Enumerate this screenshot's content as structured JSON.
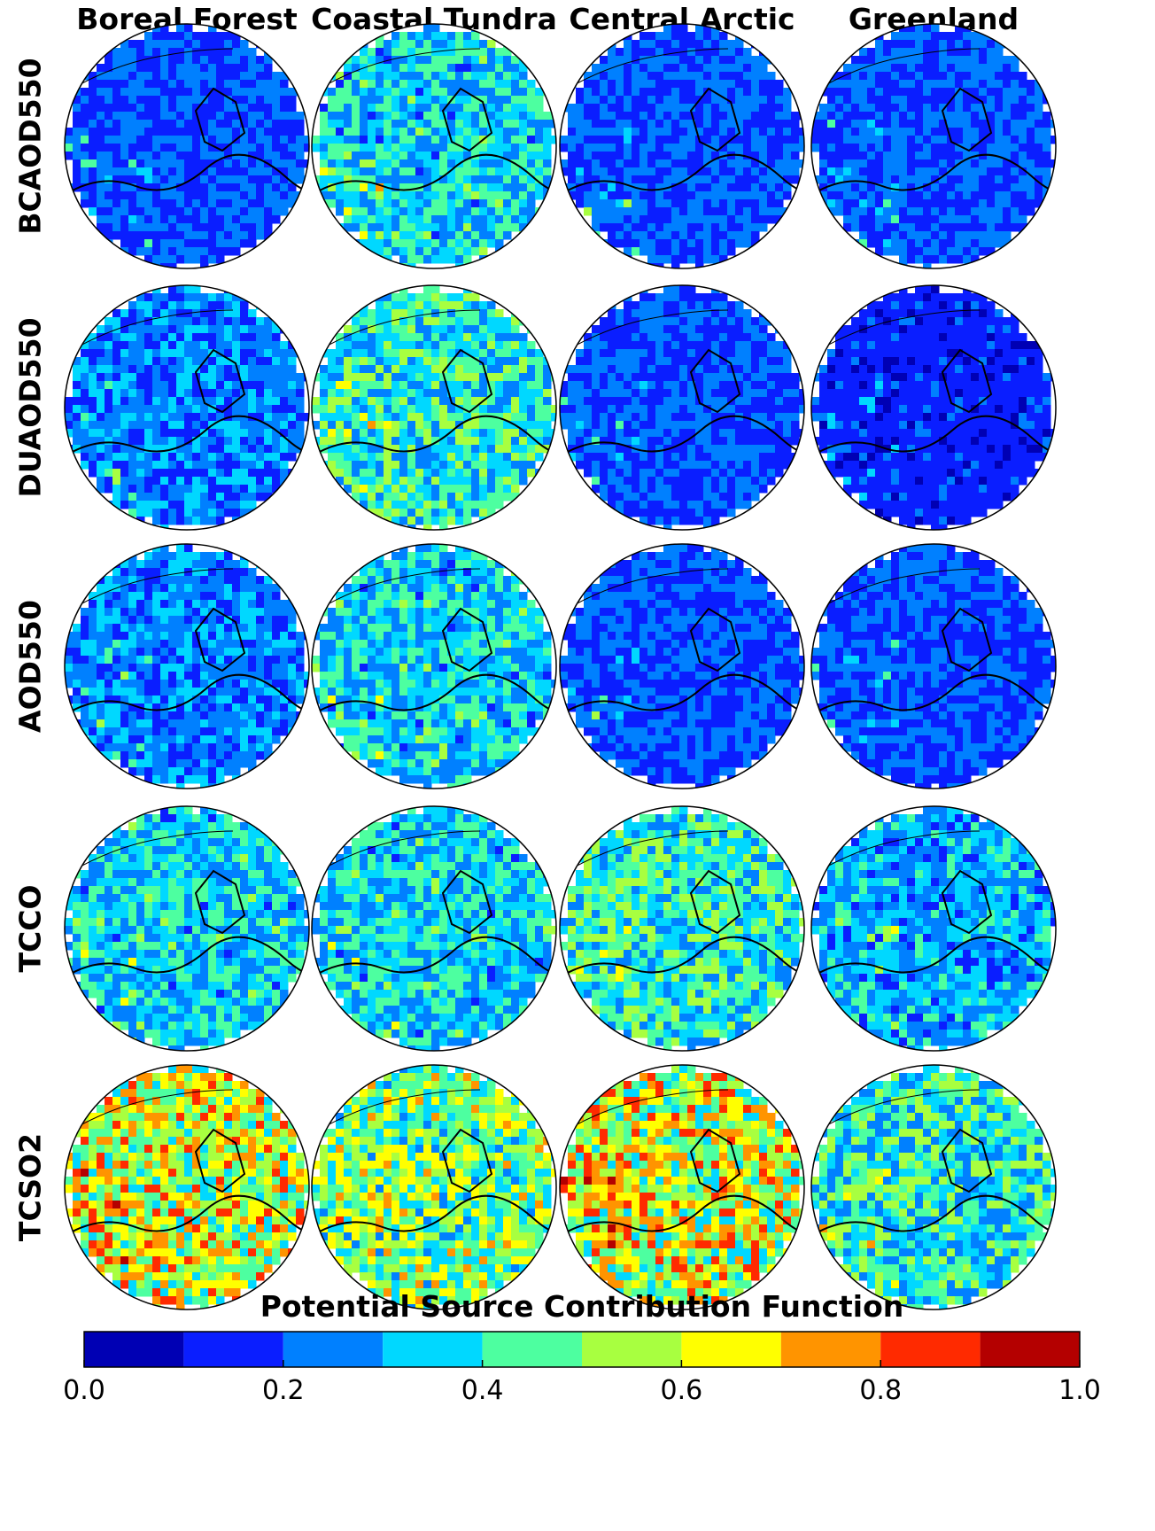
{
  "chart_data": {
    "type": "heatmap",
    "layout": "small-multiples polar maps (rows x columns)",
    "columns": [
      "Boreal Forest",
      "Coastal Tundra",
      "Central Arctic",
      "Greenland"
    ],
    "rows": [
      "BCAOD550",
      "DUAOD550",
      "AOD550",
      "TCCO",
      "TCSO2"
    ],
    "colorbar": {
      "title": "Potential Source Contribution Function",
      "range": [
        0.0,
        1.0
      ],
      "bounds": [
        0.0,
        0.1,
        0.2,
        0.3,
        0.4,
        0.5,
        0.6,
        0.7,
        0.8,
        0.9,
        1.0
      ],
      "tick_labels": [
        "0.0",
        "0.2",
        "0.4",
        "0.6",
        "0.8",
        "1.0"
      ],
      "colors": [
        "#0000b4",
        "#0a1eff",
        "#0080ff",
        "#00d8ff",
        "#4dffa0",
        "#a8ff40",
        "#ffff00",
        "#ff9400",
        "#ff2a00",
        "#b40000"
      ]
    },
    "panels_dominant_level": {
      "BCAOD550": [
        0.2,
        0.35,
        0.2,
        0.2
      ],
      "DUAOD550": [
        0.25,
        0.4,
        0.2,
        0.15
      ],
      "AOD550": [
        0.25,
        0.35,
        0.2,
        0.2
      ],
      "TCCO": [
        0.35,
        0.35,
        0.4,
        0.3
      ],
      "TCSO2": [
        0.6,
        0.5,
        0.6,
        0.4
      ]
    }
  }
}
